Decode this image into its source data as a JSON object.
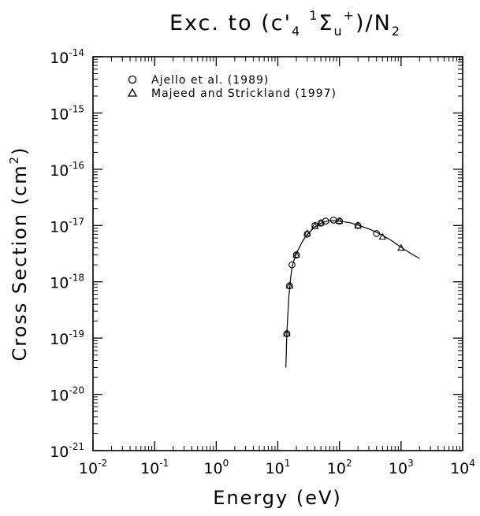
{
  "chart_data": {
    "type": "scatter",
    "title": {
      "prefix": "Exc. to (c'",
      "sub1": "4",
      "sup1": "1",
      "sigma": "Σ",
      "sub2": "u",
      "sup2": "+",
      "mid": ")/N",
      "sub3": "2"
    },
    "xlabel": "Energy (eV)",
    "ylabel": {
      "text": "Cross Section (cm",
      "sup": "2",
      "close": ")"
    },
    "xscale": "log",
    "yscale": "log",
    "xlim": [
      0.01,
      10000
    ],
    "ylim": [
      1e-21,
      1e-14
    ],
    "x_ticks": [
      {
        "base": "10",
        "exp": "-2"
      },
      {
        "base": "10",
        "exp": "-1"
      },
      {
        "base": "10",
        "exp": "0"
      },
      {
        "base": "10",
        "exp": "1"
      },
      {
        "base": "10",
        "exp": "2"
      },
      {
        "base": "10",
        "exp": "3"
      },
      {
        "base": "10",
        "exp": "4"
      }
    ],
    "y_ticks": [
      {
        "base": "10",
        "exp": "-14"
      },
      {
        "base": "10",
        "exp": "-15"
      },
      {
        "base": "10",
        "exp": "-16"
      },
      {
        "base": "10",
        "exp": "-17"
      },
      {
        "base": "10",
        "exp": "-18"
      },
      {
        "base": "10",
        "exp": "-19"
      },
      {
        "base": "10",
        "exp": "-20"
      },
      {
        "base": "10",
        "exp": "-21"
      }
    ],
    "legend_position": "top-left",
    "grid": false,
    "series": [
      {
        "name": "Ajello et al. (1989)",
        "marker": "circle",
        "x": [
          14,
          15.5,
          17,
          20,
          30,
          40,
          50,
          60,
          80,
          100,
          200,
          400
        ],
        "y": [
          1.2e-19,
          8.5e-19,
          2e-18,
          3e-18,
          7e-18,
          1e-17,
          1.1e-17,
          1.2e-17,
          1.25e-17,
          1.2e-17,
          1e-17,
          7.2e-18
        ]
      },
      {
        "name": "Majeed and Strickland (1997)",
        "marker": "triangle",
        "x": [
          14,
          15.5,
          20,
          30,
          40,
          50,
          100,
          200,
          500,
          1000
        ],
        "y": [
          1.2e-19,
          8.5e-19,
          3e-18,
          7.3e-18,
          9.8e-18,
          1.12e-17,
          1.2e-17,
          1e-17,
          6.3e-18,
          4e-18
        ]
      },
      {
        "name": "",
        "marker": "line",
        "x": [
          13.5,
          14,
          15,
          16,
          17,
          18,
          20,
          25,
          30,
          40,
          50,
          60,
          70,
          80,
          100,
          150,
          200,
          300,
          400,
          500,
          700,
          1000,
          1500,
          2000
        ],
        "y": [
          3e-20,
          1.2e-19,
          5e-19,
          1.1e-18,
          1.8e-18,
          2.3e-18,
          3.2e-18,
          5.2e-18,
          7e-18,
          9.5e-18,
          1.1e-17,
          1.18e-17,
          1.22e-17,
          1.22e-17,
          1.2e-17,
          1.12e-17,
          1.02e-17,
          8.7e-18,
          7.6e-18,
          6.7e-18,
          5.4e-18,
          4.1e-18,
          3.1e-18,
          2.6e-18
        ]
      }
    ]
  }
}
